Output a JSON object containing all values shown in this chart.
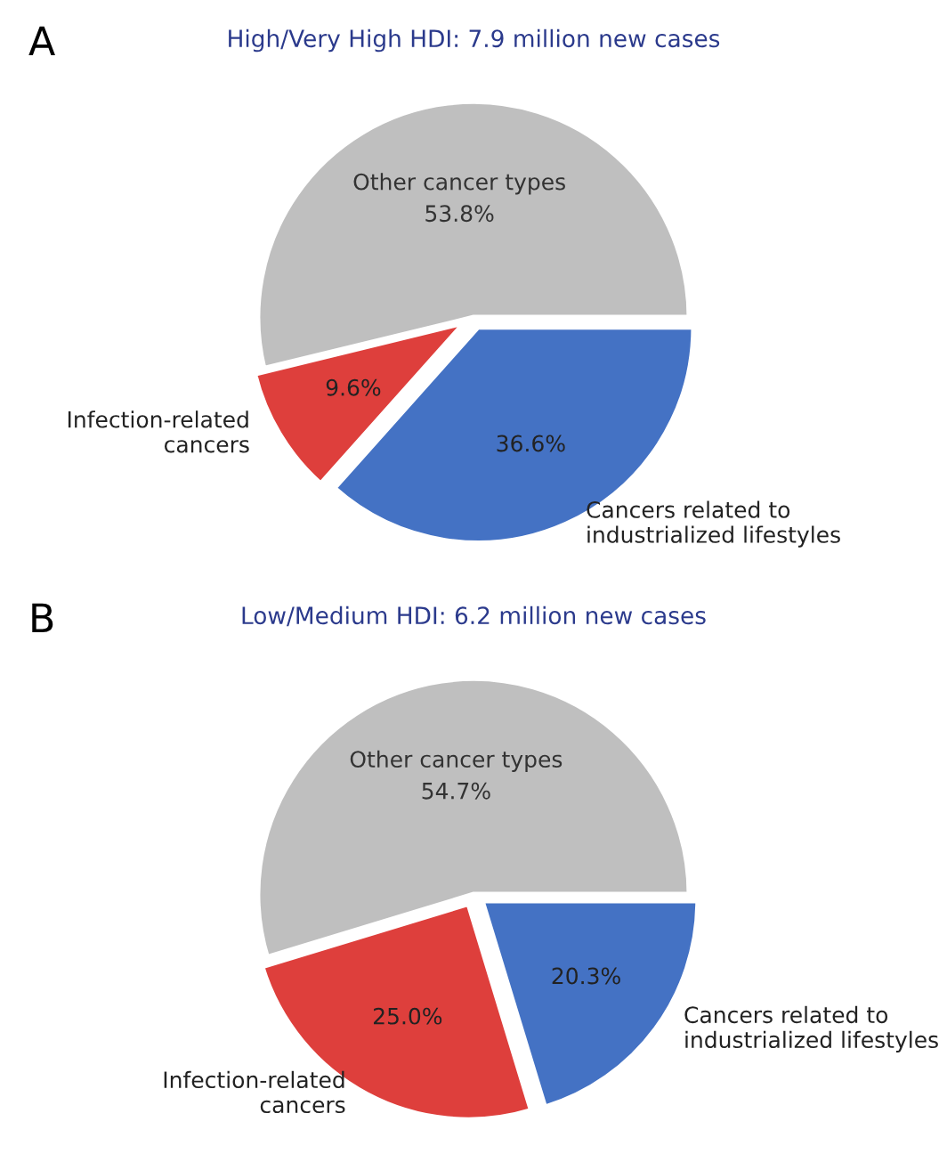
{
  "chart_data": [
    {
      "type": "pie",
      "title": "High/Very High HDI: 7.9 million new cases",
      "annotations": [
        "A"
      ],
      "categories": [
        "Other cancer types",
        "Infection-related\ncancers",
        "Cancers related to\nindustrialized lifestyles"
      ],
      "values": [
        53.8,
        9.6,
        36.6
      ],
      "colors": [
        "#bfbfbf",
        "#de3f3c",
        "#4472c4"
      ],
      "value_labels": [
        "53.8%",
        "9.6%",
        "36.6%"
      ],
      "legend": false
    },
    {
      "type": "pie",
      "title": "Low/Medium HDI: 6.2 million new cases",
      "annotations": [
        "B"
      ],
      "categories": [
        "Other cancer types",
        "Infection-related\ncancers",
        "Cancers related to\nindustrialized lifestyles"
      ],
      "values": [
        54.7,
        25.0,
        20.3
      ],
      "colors": [
        "#bfbfbf",
        "#de3f3c",
        "#4472c4"
      ],
      "value_labels": [
        "54.7%",
        "25.0%",
        "20.3%"
      ],
      "legend": false
    }
  ]
}
